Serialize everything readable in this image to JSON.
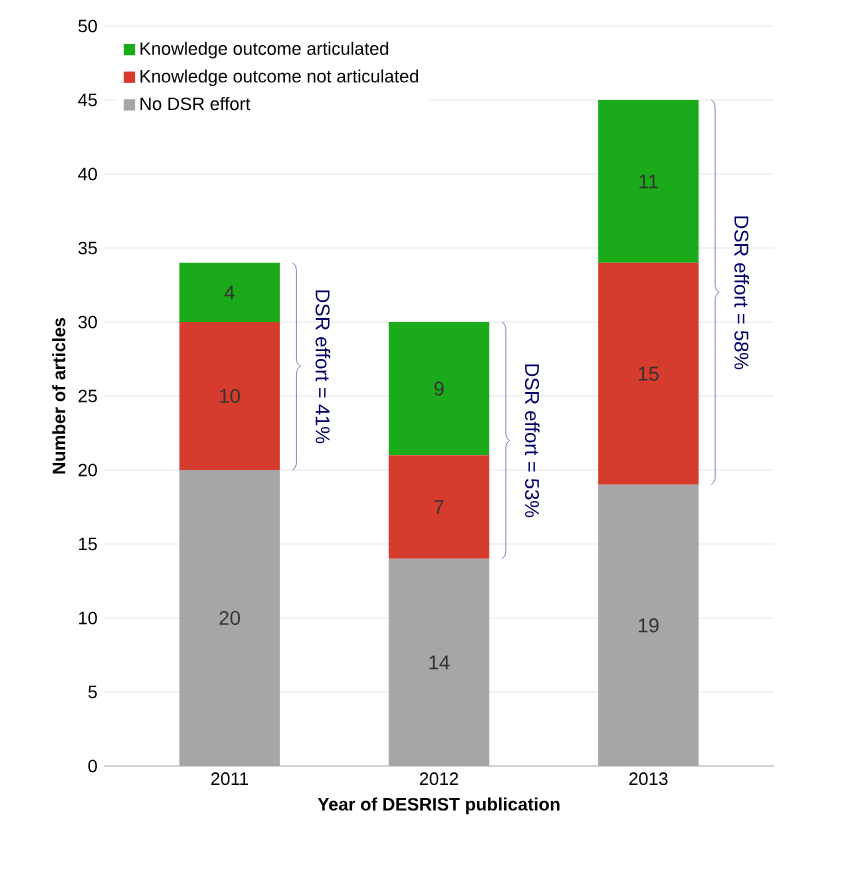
{
  "chart_data": {
    "type": "bar",
    "stacked": true,
    "xlabel": "Year of DESRIST publication",
    "ylabel": "Number of articles",
    "categories": [
      "2011",
      "2012",
      "2013"
    ],
    "series": [
      {
        "name": "No DSR effort",
        "color": "#a6a6a6",
        "values": [
          20,
          14,
          19
        ]
      },
      {
        "name": "Knowledge outcome not articulated",
        "color": "#d63c2e",
        "values": [
          10,
          7,
          15
        ]
      },
      {
        "name": "Knowledge outcome articulated",
        "color": "#1aaa1a",
        "values": [
          4,
          9,
          11
        ]
      }
    ],
    "ylim": [
      0,
      50
    ],
    "yticks": [
      0,
      5,
      10,
      15,
      20,
      25,
      30,
      35,
      40,
      45,
      50
    ],
    "grid": "y",
    "legend": "top left",
    "data_labels": true,
    "annotations": [
      "DSR effort = 41%",
      "DSR effort = 53%",
      "DSR effort = 58%"
    ]
  }
}
